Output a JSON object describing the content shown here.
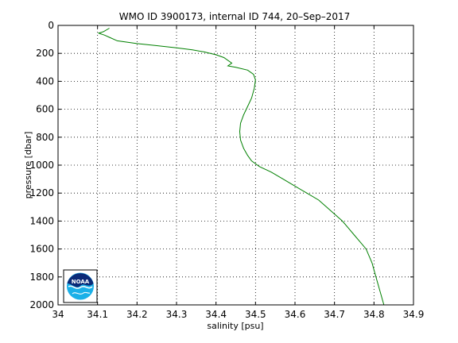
{
  "chart_data": {
    "type": "line",
    "title": "WMO ID 3900173, internal ID 744, 20–Sep–2017",
    "xlabel": "salinity [psu]",
    "ylabel": "pressure [dbar]",
    "xlim": [
      34,
      34.9
    ],
    "ylim": [
      0,
      2000
    ],
    "y_reversed": true,
    "grid": true,
    "x_ticks": [
      "34",
      "34.1",
      "34.2",
      "34.3",
      "34.4",
      "34.5",
      "34.6",
      "34.7",
      "34.8",
      "34.9"
    ],
    "y_ticks": [
      "0",
      "200",
      "400",
      "600",
      "800",
      "1000",
      "1200",
      "1400",
      "1600",
      "1800",
      "2000"
    ],
    "series": [
      {
        "color": "#008000",
        "salinity": [
          34.13,
          34.115,
          34.103,
          34.108,
          34.118,
          34.13,
          34.15,
          34.2,
          34.25,
          34.3,
          34.34,
          34.37,
          34.4,
          34.42,
          34.44,
          34.43,
          34.45,
          34.48,
          34.495,
          34.5,
          34.497,
          34.49,
          34.48,
          34.47,
          34.462,
          34.46,
          34.462,
          34.47,
          34.48,
          34.49,
          34.51,
          34.54,
          34.57,
          34.6,
          34.63,
          34.66,
          34.68,
          34.7,
          34.72,
          34.735,
          34.75,
          34.765,
          34.78,
          34.795,
          34.805,
          34.815,
          34.825
        ],
        "pressure": [
          20,
          45,
          55,
          60,
          70,
          85,
          110,
          130,
          145,
          160,
          175,
          190,
          210,
          230,
          270,
          290,
          300,
          320,
          350,
          390,
          450,
          520,
          580,
          640,
          700,
          760,
          820,
          880,
          930,
          970,
          1010,
          1050,
          1100,
          1150,
          1200,
          1250,
          1300,
          1350,
          1400,
          1450,
          1500,
          1550,
          1600,
          1700,
          1800,
          1900,
          2000
        ]
      }
    ]
  },
  "logo": {
    "text": "NOAA"
  }
}
